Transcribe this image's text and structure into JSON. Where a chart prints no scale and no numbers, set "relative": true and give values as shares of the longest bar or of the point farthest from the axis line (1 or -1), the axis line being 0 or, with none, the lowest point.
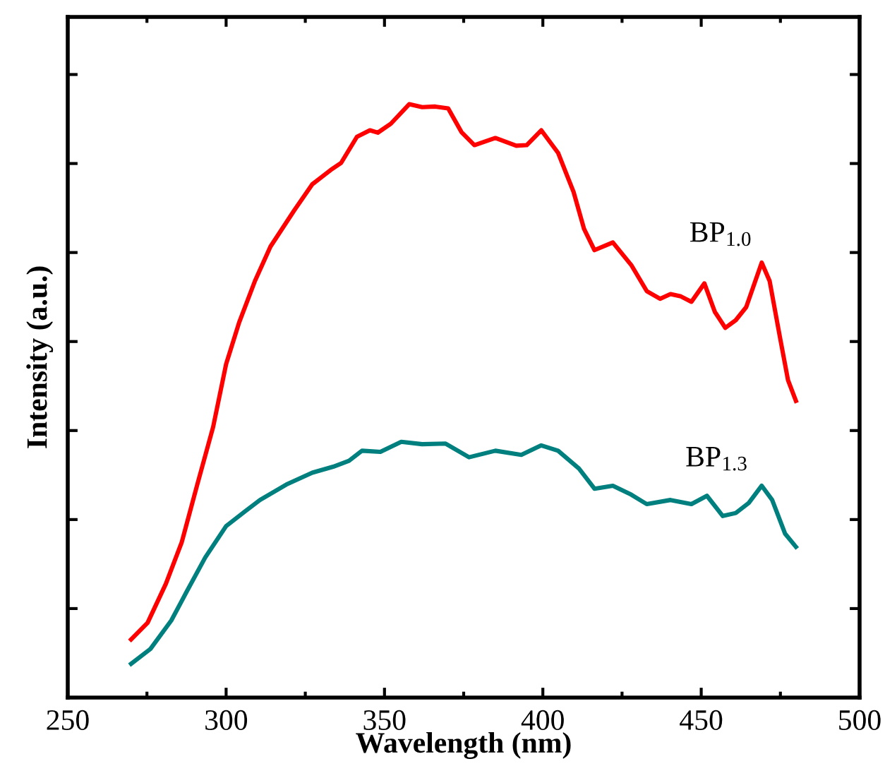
{
  "chart_data": {
    "type": "line",
    "xlabel": "Wavelength (nm)",
    "ylabel": "Intensity (a.u.)",
    "relative": true,
    "xlim": [
      250,
      500
    ],
    "xticks": [
      250,
      300,
      350,
      400,
      450,
      500
    ],
    "grid": false,
    "legend": false,
    "marker": "none",
    "line_style": "solid",
    "series": [
      {
        "name": "BP$_{1.0}$",
        "color": "#ff0000",
        "x": [
          270.0,
          275.2,
          281.0,
          286.0,
          290.9,
          295.9,
          300,
          304.1,
          309.1,
          314.0,
          321.5,
          327.2,
          333.0,
          336.3,
          341.3,
          345.4,
          347.9,
          352.0,
          357.8,
          361.9,
          366.0,
          370.1,
          374.3,
          378.4,
          385.0,
          391.6,
          394.9,
          399.5,
          404.8,
          409.7,
          413.0,
          416.3,
          422.1,
          427.9,
          432.8,
          437.0,
          440.3,
          443.6,
          446.9,
          451.0,
          454.3,
          457.6,
          460.9,
          464.2,
          469.1,
          471.6,
          474.9,
          477.4,
          479.9
        ],
        "values": [
          0.098,
          0.126,
          0.192,
          0.262,
          0.359,
          0.456,
          0.562,
          0.632,
          0.702,
          0.76,
          0.821,
          0.865,
          0.889,
          0.901,
          0.945,
          0.956,
          0.952,
          0.967,
          1.0,
          0.995,
          0.996,
          0.993,
          0.953,
          0.931,
          0.943,
          0.93,
          0.931,
          0.956,
          0.918,
          0.852,
          0.79,
          0.754,
          0.767,
          0.729,
          0.685,
          0.672,
          0.68,
          0.676,
          0.667,
          0.698,
          0.65,
          0.623,
          0.636,
          0.658,
          0.733,
          0.702,
          0.606,
          0.535,
          0.5
        ]
      },
      {
        "name": "BP$_{1.3}$",
        "color": "#007f7f",
        "x": [
          270.0,
          276.1,
          282.7,
          287.6,
          293.4,
          300,
          305.8,
          310.7,
          319.0,
          327.2,
          333.8,
          338.8,
          342.9,
          348.7,
          355.3,
          361.9,
          369.3,
          376.7,
          385.0,
          393.2,
          399.5,
          404.8,
          411.4,
          416.3,
          422.1,
          427.9,
          432.8,
          440.3,
          446.9,
          451.8,
          456.8,
          460.9,
          465.0,
          469.1,
          472.4,
          476.5,
          479.9
        ],
        "values": [
          0.057,
          0.082,
          0.13,
          0.179,
          0.236,
          0.289,
          0.313,
          0.333,
          0.359,
          0.379,
          0.389,
          0.399,
          0.416,
          0.414,
          0.431,
          0.427,
          0.428,
          0.405,
          0.416,
          0.409,
          0.425,
          0.416,
          0.386,
          0.352,
          0.357,
          0.342,
          0.326,
          0.333,
          0.326,
          0.34,
          0.306,
          0.311,
          0.328,
          0.357,
          0.333,
          0.276,
          0.254
        ]
      }
    ]
  }
}
